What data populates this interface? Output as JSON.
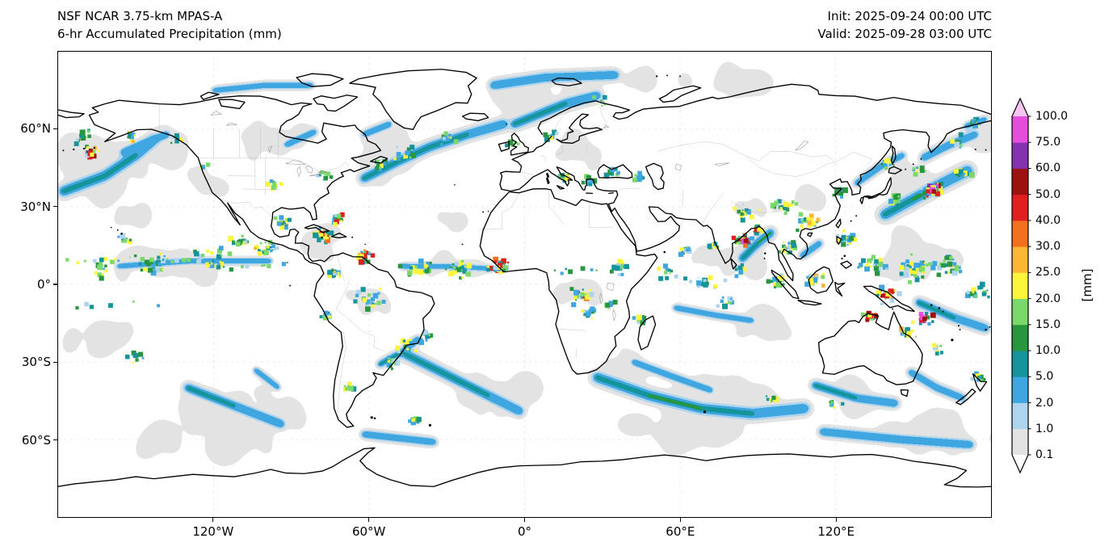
{
  "header": {
    "title_line1": "NSF NCAR 3.75-km MPAS-A",
    "title_line2": "6-hr Accumulated Precipitation (mm)",
    "init_line": "Init: 2025-09-24 00:00 UTC",
    "valid_line": "Valid: 2025-09-28 03:00 UTC"
  },
  "map": {
    "projection": "equirectangular",
    "lon_range": [
      -180,
      180
    ],
    "lat_range": [
      -90,
      90
    ],
    "x_tick_labels": [
      "120°W",
      "60°W",
      "0°",
      "60°E",
      "120°E"
    ],
    "x_tick_lons": [
      -120,
      -60,
      0,
      60,
      120
    ],
    "y_tick_labels": [
      "60°N",
      "30°N",
      "0°",
      "30°S",
      "60°S"
    ],
    "y_tick_lats": [
      60,
      30,
      0,
      -30,
      -60
    ]
  },
  "colorbar": {
    "unit_label": "[mm]",
    "tick_labels_bottom_to_top": [
      "0.1",
      "1.0",
      "2.0",
      "5.0",
      "10.0",
      "15.0",
      "20.0",
      "25.0",
      "30.0",
      "40.0",
      "50.0",
      "60.0",
      "75.0",
      "100.0"
    ],
    "band_colors_bottom_to_top": [
      "#e3e3e3",
      "#aed4ee",
      "#3fa6e0",
      "#17949b",
      "#27963f",
      "#7bd96c",
      "#fbf63c",
      "#fcb636",
      "#f3701f",
      "#e01f1f",
      "#9e1111",
      "#8432b0",
      "#e54ddb"
    ],
    "under_color": "#ffffff",
    "over_color": "#f6c4f0"
  },
  "style_colors": {
    "coastline": "#000000",
    "country_border": "#b9b9b9",
    "lake_outline": "#8c8c8c",
    "gridline": "#d0d0d0",
    "background": "#ffffff"
  }
}
